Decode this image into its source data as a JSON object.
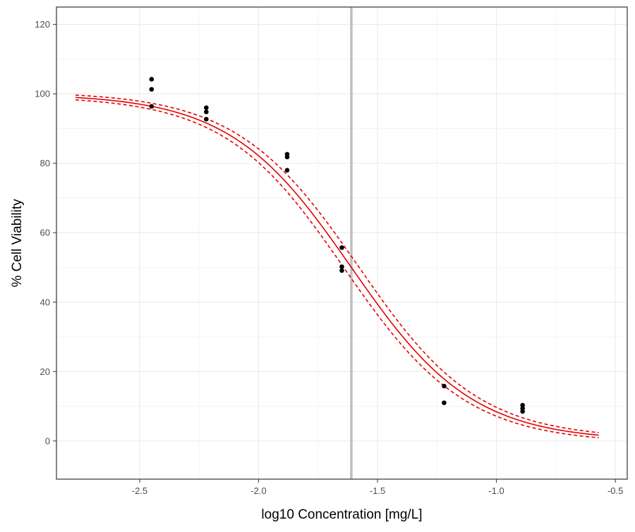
{
  "chart_data": {
    "type": "scatter",
    "title": "",
    "xlabel": "log10 Concentration [mg/L]",
    "ylabel": "% Cell Viability",
    "xlim": [
      -2.85,
      -0.45
    ],
    "ylim": [
      -11,
      125
    ],
    "grid": true,
    "legend": "none",
    "x_ticks": [
      -2.5,
      -2.0,
      -1.5,
      -1.0,
      -0.5
    ],
    "x_tick_labels": [
      "-2.5",
      "-2.0",
      "-1.5",
      "-1.0",
      "-0.5"
    ],
    "y_ticks": [
      0,
      20,
      40,
      60,
      80,
      100,
      120
    ],
    "y_tick_labels": [
      "0",
      "20",
      "40",
      "60",
      "80",
      "100",
      "120"
    ],
    "vertical_line": {
      "x": -1.61,
      "color": "#bebebe"
    },
    "points": {
      "color": "#000000",
      "x": [
        -2.45,
        -2.45,
        -2.45,
        -2.22,
        -2.22,
        -2.22,
        -1.88,
        -1.88,
        -1.88,
        -1.65,
        -1.65,
        -1.65,
        -1.22,
        -1.22,
        -0.89,
        -0.89,
        -0.89
      ],
      "y": [
        104.2,
        101.3,
        96.4,
        96.0,
        94.8,
        92.7,
        82.6,
        81.8,
        78.0,
        55.7,
        50.2,
        49.1,
        15.8,
        11.0,
        10.3,
        9.4,
        8.5
      ]
    },
    "fit": {
      "color": "#e60000",
      "model": "4-parameter logistic",
      "top": 100,
      "bottom": 0,
      "log_ic50": -1.61,
      "hill_slope": 1.7,
      "x_range": [
        -2.77,
        -0.57
      ],
      "ci_offset_top": 2.6,
      "ci_offset_bottom": 2.6
    }
  }
}
